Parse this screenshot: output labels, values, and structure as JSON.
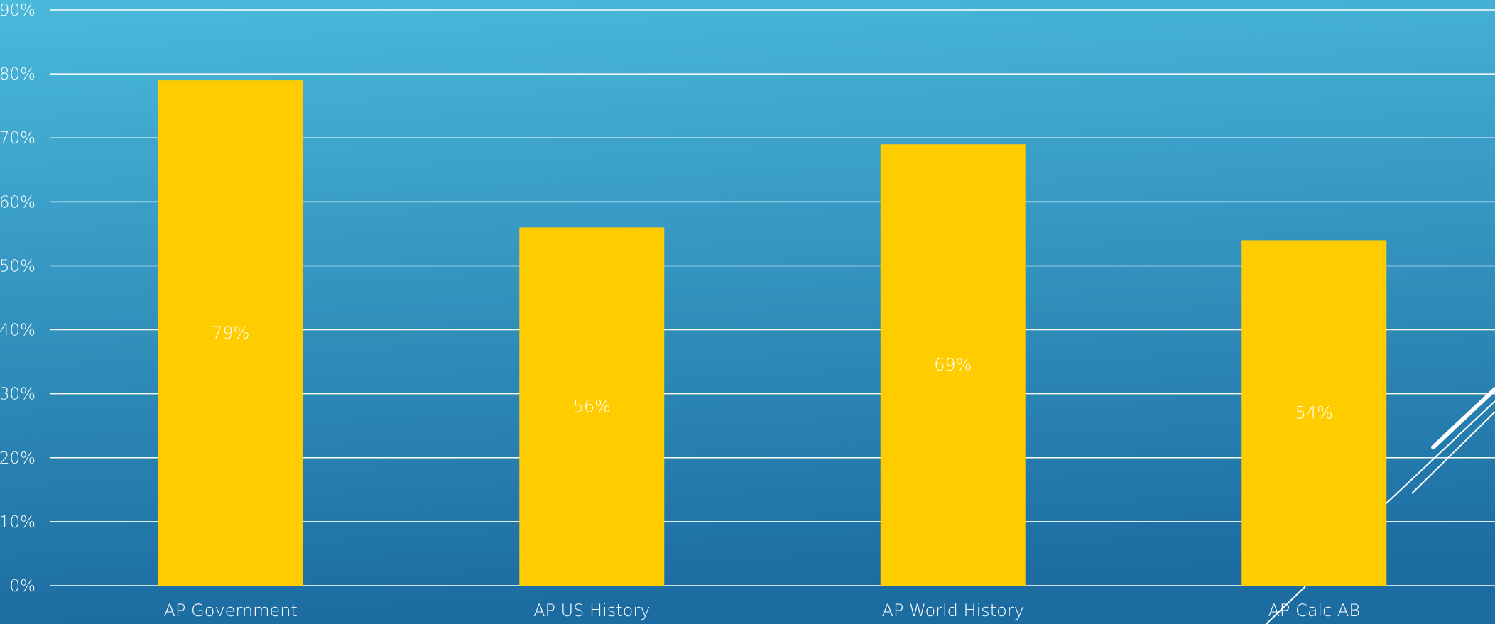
{
  "chart_data": {
    "type": "bar",
    "title": "",
    "xlabel": "",
    "ylabel": "",
    "categories": [
      "AP Government",
      "AP US History",
      "AP World History",
      "AP Calc AB"
    ],
    "values": [
      0.79,
      0.56,
      0.69,
      0.54
    ],
    "data_labels": [
      "79%",
      "56%",
      "69%",
      "54%"
    ],
    "ylim": [
      0,
      0.9
    ],
    "y_ticks": [
      0,
      0.1,
      0.2,
      0.3,
      0.4,
      0.5,
      0.6,
      0.7,
      0.8,
      0.9
    ],
    "y_tick_labels": [
      "0%",
      "10%",
      "20%",
      "30%",
      "40%",
      "50%",
      "60%",
      "70%",
      "80%",
      "90%"
    ],
    "grid": true,
    "legend": "none"
  },
  "colors": {
    "background_top": "#4ab9dc",
    "background_bottom": "#1c6ca1",
    "bar": "#ffcc00",
    "text": "#ffffff",
    "gridline": "#ffffff"
  }
}
